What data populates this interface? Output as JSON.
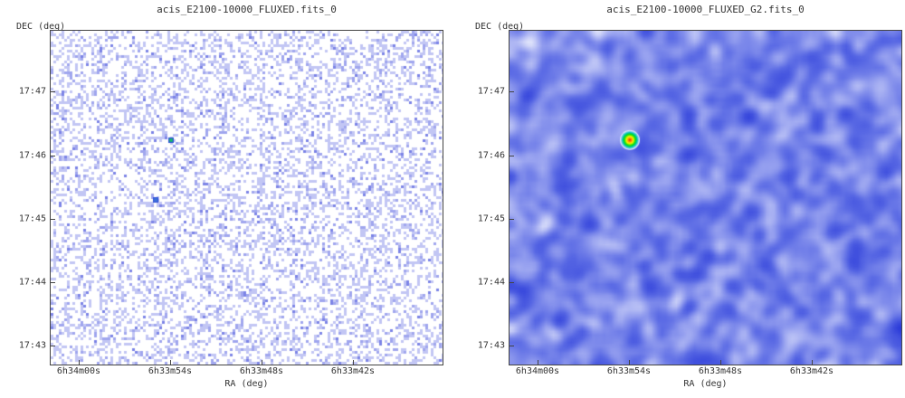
{
  "chart_data": [
    {
      "type": "heatmap",
      "title": "acis_E2100-10000_FLUXED.fits_0",
      "xlabel": "RA (deg)",
      "ylabel": "DEC (deg)",
      "x_tick_labels": [
        "6h34m00s",
        "6h33m54s",
        "6h33m48s",
        "6h33m42s"
      ],
      "y_tick_labels": [
        "17:47",
        "17:46",
        "17:45",
        "17:44",
        "17:43"
      ],
      "rendering": "sparse-pixel",
      "colormap": [
        "#ffffff",
        "#b4b8f2",
        "#8088e8",
        "#2060e0",
        "#00c0c0",
        "#00e000",
        "#ffff00",
        "#ff8000",
        "#e00000"
      ],
      "sources": [
        {
          "ra": "6h33m54s",
          "dec": "17:46.25",
          "peak": 0.55
        },
        {
          "ra": "6h33m55s",
          "dec": "17:45.3",
          "peak": 0.3
        }
      ]
    },
    {
      "type": "heatmap",
      "title": "acis_E2100-10000_FLUXED_G2.fits_0",
      "xlabel": "RA (deg)",
      "ylabel": "DEC (deg)",
      "x_tick_labels": [
        "6h34m00s",
        "6h33m54s",
        "6h33m48s",
        "6h33m42s"
      ],
      "y_tick_labels": [
        "17:47",
        "17:46",
        "17:45",
        "17:44",
        "17:43"
      ],
      "rendering": "smoothed",
      "colormap": [
        "#2838d8",
        "#5868e4",
        "#9aa4f0",
        "#dfe3fb",
        "#00c0c0",
        "#00e000",
        "#ffff00",
        "#ff8000",
        "#e00000"
      ],
      "sources": [
        {
          "ra": "6h33m54s",
          "dec": "17:46.25",
          "peak": 1.0
        }
      ]
    }
  ]
}
